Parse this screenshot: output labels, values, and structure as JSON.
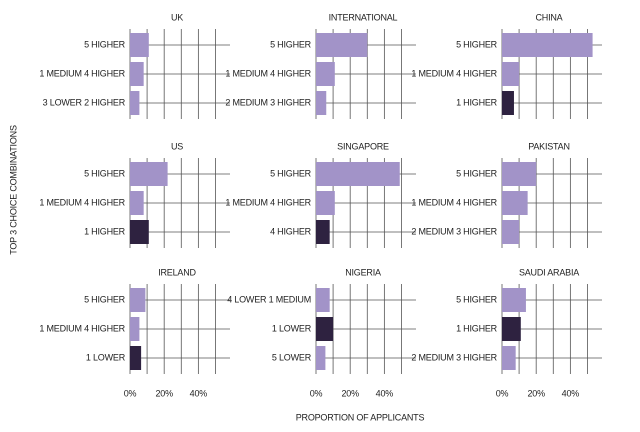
{
  "x_label": "PROPORTION OF APPLICANTS",
  "y_label": "TOP 3 CHOICE COMBINATIONS",
  "xlim": [
    0,
    55
  ],
  "xticks": [
    {
      "value": 0,
      "label": "0%"
    },
    {
      "value": 20,
      "label": "20%"
    },
    {
      "value": 40,
      "label": "40%"
    }
  ],
  "minor_xticks": [
    10,
    30,
    50
  ],
  "chart_data": [
    {
      "type": "bar",
      "orientation": "horizontal",
      "title": "UK",
      "categories": [
        "5 HIGHER",
        "1 MEDIUM 4 HIGHER",
        "3 LOWER 2 HIGHER"
      ],
      "values": [
        11,
        8,
        5.5
      ],
      "colors": [
        "#a293c8",
        "#a293c8",
        "#a293c8"
      ]
    },
    {
      "type": "bar",
      "orientation": "horizontal",
      "title": "INTERNATIONAL",
      "categories": [
        "5 HIGHER",
        "1 MEDIUM 4 HIGHER",
        "2 MEDIUM 3 HIGHER"
      ],
      "values": [
        30,
        11,
        6
      ],
      "colors": [
        "#a293c8",
        "#a293c8",
        "#a293c8"
      ]
    },
    {
      "type": "bar",
      "orientation": "horizontal",
      "title": "CHINA",
      "categories": [
        "5 HIGHER",
        "1 MEDIUM 4 HIGHER",
        "1 HIGHER"
      ],
      "values": [
        53,
        10,
        7
      ],
      "colors": [
        "#a293c8",
        "#a293c8",
        "#2e2240"
      ]
    },
    {
      "type": "bar",
      "orientation": "horizontal",
      "title": "US",
      "categories": [
        "5 HIGHER",
        "1 MEDIUM 4 HIGHER",
        "1 HIGHER"
      ],
      "values": [
        22,
        8,
        11
      ],
      "colors": [
        "#a293c8",
        "#a293c8",
        "#2e2240"
      ]
    },
    {
      "type": "bar",
      "orientation": "horizontal",
      "title": "SINGAPORE",
      "categories": [
        "5 HIGHER",
        "1 MEDIUM 4 HIGHER",
        "4 HIGHER"
      ],
      "values": [
        49,
        11,
        8
      ],
      "colors": [
        "#a293c8",
        "#a293c8",
        "#2e2240"
      ]
    },
    {
      "type": "bar",
      "orientation": "horizontal",
      "title": "PAKISTAN",
      "categories": [
        "5 HIGHER",
        "1 MEDIUM 4 HIGHER",
        "2 MEDIUM 3 HIGHER"
      ],
      "values": [
        20,
        15,
        10
      ],
      "colors": [
        "#a293c8",
        "#a293c8",
        "#a293c8"
      ]
    },
    {
      "type": "bar",
      "orientation": "horizontal",
      "title": "IRELAND",
      "categories": [
        "5 HIGHER",
        "1 MEDIUM 4 HIGHER",
        "1 LOWER"
      ],
      "values": [
        9,
        5.5,
        6.5
      ],
      "colors": [
        "#a293c8",
        "#a293c8",
        "#2e2240"
      ]
    },
    {
      "type": "bar",
      "orientation": "horizontal",
      "title": "NIGERIA",
      "categories": [
        "4 LOWER 1 MEDIUM",
        "1 LOWER",
        "5 LOWER"
      ],
      "values": [
        8,
        10,
        5.5
      ],
      "colors": [
        "#a293c8",
        "#2e2240",
        "#a293c8"
      ]
    },
    {
      "type": "bar",
      "orientation": "horizontal",
      "title": "SAUDI ARABIA",
      "categories": [
        "5 HIGHER",
        "1 HIGHER",
        "2 MEDIUM 3 HIGHER"
      ],
      "values": [
        14,
        11,
        8
      ],
      "colors": [
        "#a293c8",
        "#2e2240",
        "#a293c8"
      ]
    }
  ]
}
